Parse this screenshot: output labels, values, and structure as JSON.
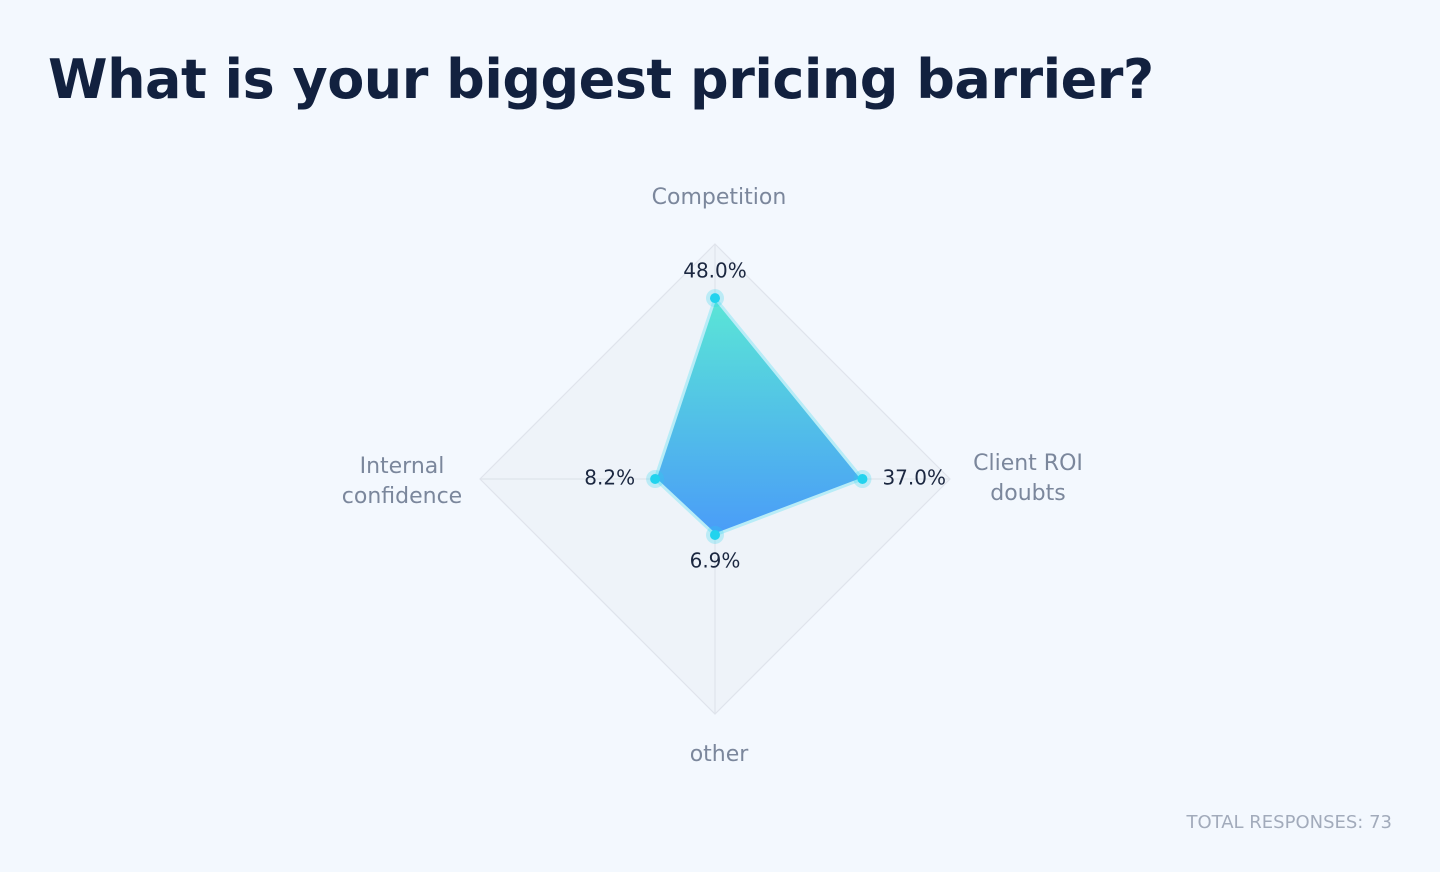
{
  "chart_data": {
    "type": "radar",
    "title": "What is your biggest pricing barrier?",
    "categories": [
      "Competition",
      "Client ROI doubts",
      "other",
      "Internal confidence"
    ],
    "values": [
      48.0,
      37.0,
      6.9,
      8.2
    ],
    "value_labels": [
      "48.0%",
      "37.0%",
      "6.9%",
      "8.2%"
    ],
    "ylim": [
      -11.5,
      65.8
    ],
    "color": "#22d3ee",
    "footer": "TOTAL RESPONSES: 73"
  }
}
